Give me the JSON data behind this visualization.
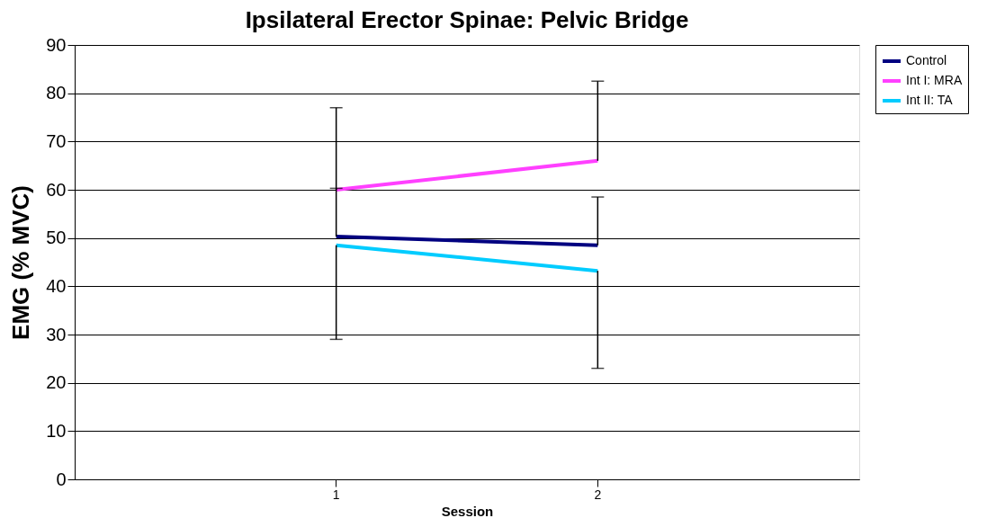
{
  "chart_data": {
    "type": "line",
    "title": "Ipsilateral Erector Spinae: Pelvic Bridge",
    "xlabel": "Session",
    "ylabel": "EMG (% MVC)",
    "categories": [
      "1",
      "2"
    ],
    "series": [
      {
        "name": "Control",
        "color": "#000080",
        "values": [
          50.3,
          48.5
        ],
        "errors": [
          [
            50.3,
            60.3
          ],
          [
            48.5,
            58.5
          ]
        ]
      },
      {
        "name": "Int I: MRA",
        "color": "#ff40ff",
        "values": [
          60,
          66
        ],
        "errors": [
          [
            60,
            77
          ],
          [
            66,
            82.5
          ]
        ]
      },
      {
        "name": "Int II: TA",
        "color": "#00ccff",
        "values": [
          48.5,
          43.2
        ],
        "errors": [
          [
            29,
            48.5
          ],
          [
            23,
            43.2
          ]
        ]
      }
    ],
    "ylim": [
      0,
      90
    ],
    "yticks": [
      0,
      10,
      20,
      30,
      40,
      50,
      60,
      70,
      80,
      90
    ],
    "grid": "y",
    "legend": "right",
    "marker": "none",
    "line_style": "solid"
  }
}
